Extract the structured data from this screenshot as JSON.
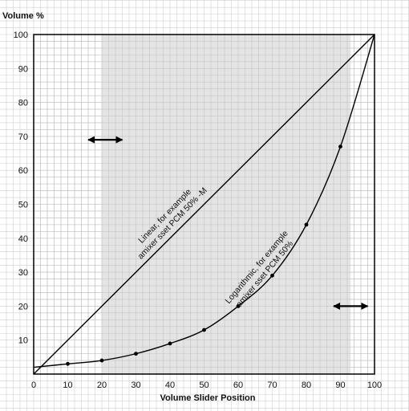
{
  "chart_data": {
    "type": "line",
    "title": "",
    "xlabel": "Volume Slider Position",
    "ylabel": "Volume %",
    "xlim": [
      0,
      100
    ],
    "ylim": [
      0,
      100
    ],
    "x_ticks": [
      0,
      10,
      20,
      30,
      40,
      50,
      60,
      70,
      80,
      90,
      100
    ],
    "y_ticks": [
      10,
      20,
      30,
      40,
      50,
      60,
      70,
      80,
      90,
      100
    ],
    "grid": true,
    "minor_grid_step": 2,
    "shaded_region": {
      "x": [
        20,
        93
      ],
      "color": "#e4e4e4"
    },
    "series": [
      {
        "key": "linear",
        "color": "#000000",
        "x": [
          0,
          100
        ],
        "y": [
          0,
          100
        ]
      },
      {
        "key": "logarithmic",
        "color": "#000000",
        "x": [
          0,
          10,
          20,
          30,
          40,
          50,
          60,
          70,
          80,
          90,
          100
        ],
        "y": [
          2,
          3,
          4,
          6,
          9,
          13,
          20,
          29,
          44,
          67,
          100
        ],
        "markers": [
          10,
          20,
          30,
          40,
          50,
          60,
          70,
          80,
          90
        ]
      }
    ],
    "annotations": [
      {
        "key": "linear_label",
        "lines": [
          "Linear, for example",
          "amixer sset PCM 50% -M"
        ],
        "x": 39,
        "y": 46,
        "angle": -46
      },
      {
        "key": "log_label",
        "lines": [
          "Logarithmic, for example",
          "amixer sset PCM 50%"
        ],
        "x": 66,
        "y": 31,
        "angle": -50
      }
    ],
    "arrows": [
      {
        "key": "left_arrow",
        "x1": 16,
        "x2": 26,
        "y": 69
      },
      {
        "key": "right_arrow",
        "x1": 88,
        "x2": 98,
        "y": 20
      }
    ]
  }
}
